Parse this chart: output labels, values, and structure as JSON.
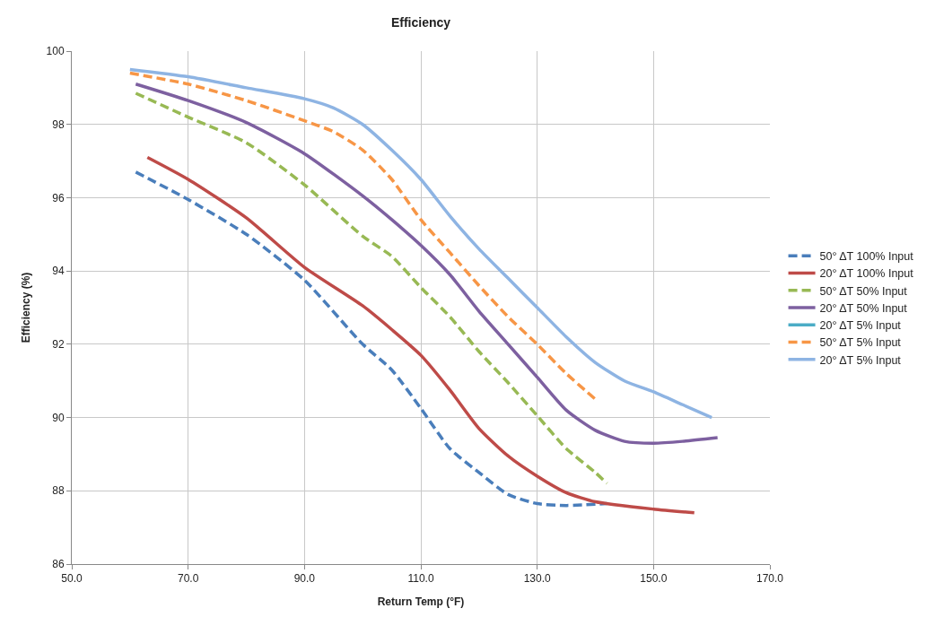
{
  "chart_data": {
    "type": "line",
    "title": "Efficiency",
    "xlabel": "Return Temp (°F)",
    "ylabel": "Efficiency (%)",
    "xlim": [
      50,
      170
    ],
    "xticks": [
      {
        "value": 50,
        "label": "50.0"
      },
      {
        "value": 70,
        "label": "70.0"
      },
      {
        "value": 90,
        "label": "90.0"
      },
      {
        "value": 110,
        "label": "110.0"
      },
      {
        "value": 130,
        "label": "130.0"
      },
      {
        "value": 150,
        "label": "150.0"
      },
      {
        "value": 170,
        "label": "170.0"
      }
    ],
    "ylim": [
      86,
      100
    ],
    "yticks": [
      86,
      88,
      90,
      92,
      94,
      96,
      98,
      100
    ],
    "grid": true,
    "legend": "right",
    "marker": "none",
    "series": [
      {
        "name": "50° ΔT 100% Input",
        "color": "#4a7ebb",
        "line_style": "dashed",
        "x": [
          61,
          70,
          80,
          90,
          100,
          105,
          110,
          115,
          120,
          125,
          130,
          135,
          142
        ],
        "values": [
          96.7,
          95.95,
          95.0,
          93.75,
          92.0,
          91.3,
          90.25,
          89.15,
          88.5,
          87.9,
          87.65,
          87.6,
          87.65
        ]
      },
      {
        "name": "20° ΔT 100% Input",
        "color": "#be4b48",
        "line_style": "solid",
        "x": [
          63,
          70,
          80,
          90,
          100,
          105,
          110,
          115,
          120,
          125,
          130,
          135,
          140,
          150,
          157
        ],
        "values": [
          97.1,
          96.5,
          95.45,
          94.1,
          93.05,
          92.4,
          91.7,
          90.75,
          89.7,
          88.95,
          88.4,
          87.95,
          87.7,
          87.5,
          87.4
        ]
      },
      {
        "name": "50° ΔT 50% Input",
        "color": "#98b954",
        "line_style": "dashed",
        "x": [
          61,
          70,
          80,
          90,
          100,
          105,
          110,
          115,
          120,
          125,
          130,
          135,
          140,
          142
        ],
        "values": [
          98.85,
          98.2,
          97.5,
          96.35,
          94.95,
          94.4,
          93.55,
          92.75,
          91.8,
          90.95,
          90.05,
          89.15,
          88.5,
          88.2
        ]
      },
      {
        "name": "20° ΔT 50% Input",
        "color": "#7d60a0",
        "line_style": "solid",
        "x": [
          61,
          70,
          80,
          90,
          100,
          105,
          110,
          115,
          120,
          125,
          130,
          135,
          140,
          145,
          150,
          155,
          161
        ],
        "values": [
          99.1,
          98.65,
          98.05,
          97.2,
          96.05,
          95.4,
          94.7,
          93.9,
          92.9,
          92.0,
          91.1,
          90.2,
          89.65,
          89.35,
          89.3,
          89.35,
          89.45
        ]
      },
      {
        "name": "20° ΔT 5% Input",
        "color": "#4bacc6",
        "line_style": "solid",
        "values": [
          null
        ]
      },
      {
        "name": "50° ΔT 5% Input",
        "color": "#f79646",
        "line_style": "dashed",
        "x": [
          60,
          70,
          80,
          90,
          95,
          100,
          105,
          110,
          115,
          120,
          125,
          130,
          135,
          140
        ],
        "values": [
          99.4,
          99.1,
          98.65,
          98.1,
          97.8,
          97.3,
          96.5,
          95.4,
          94.5,
          93.6,
          92.75,
          92.0,
          91.2,
          90.5
        ]
      },
      {
        "name": "20° ΔT 5% Input",
        "color": "#8eb4e3",
        "line_style": "solid",
        "x": [
          60,
          70,
          80,
          90,
          95,
          100,
          105,
          110,
          115,
          120,
          125,
          130,
          135,
          140,
          145,
          150,
          155,
          160
        ],
        "values": [
          99.5,
          99.3,
          99.0,
          98.7,
          98.45,
          98.0,
          97.3,
          96.5,
          95.5,
          94.6,
          93.8,
          93.0,
          92.2,
          91.5,
          91.0,
          90.7,
          90.35,
          90.0
        ]
      }
    ]
  }
}
